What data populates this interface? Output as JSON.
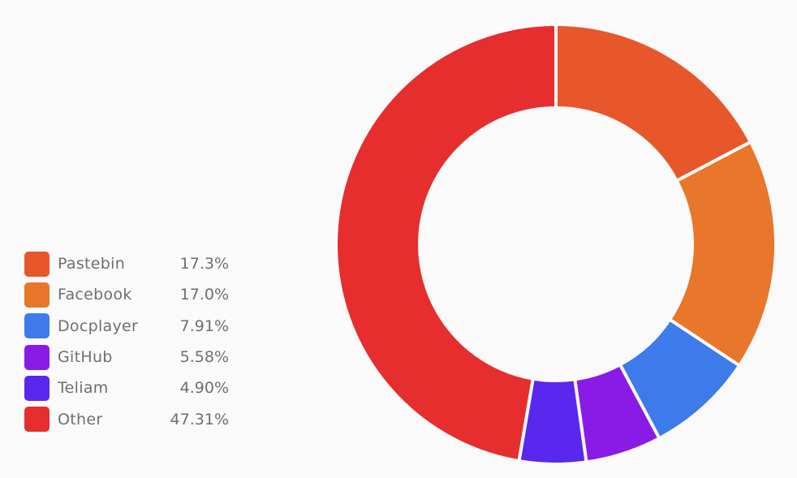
{
  "chart_data": {
    "type": "pie",
    "donut": true,
    "legend_position": "left",
    "categories": [
      "Pastebin",
      "Facebook",
      "Docplayer",
      "GitHub",
      "Teliam",
      "Other"
    ],
    "values": [
      17.3,
      17.0,
      7.91,
      5.58,
      4.9,
      47.31
    ],
    "labels": [
      "17.3%",
      "17.0%",
      "7.91%",
      "5.58%",
      "4.90%",
      "47.31%"
    ],
    "colors": [
      "#e8572c",
      "#e8762b",
      "#3d7beb",
      "#8a1be6",
      "#5a27ee",
      "#e62e2e"
    ]
  }
}
